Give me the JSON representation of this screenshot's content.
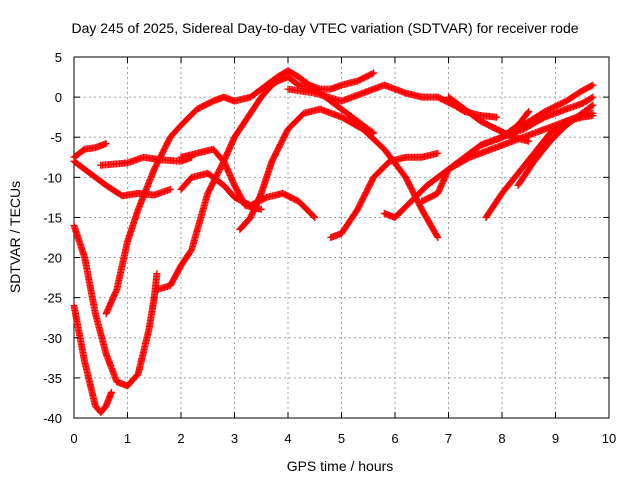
{
  "chart_data": {
    "type": "scatter",
    "title": "Day 245 of 2025, Sidereal Day-to-day VTEC variation (SDTVAR) for receiver rode",
    "xlabel": "GPS time / hours",
    "ylabel": "SDTVAR / TECUs",
    "xlim": [
      0,
      10
    ],
    "ylim": [
      -40,
      5
    ],
    "xticks": [
      0,
      1,
      2,
      3,
      4,
      5,
      6,
      7,
      8,
      9,
      10
    ],
    "yticks": [
      5,
      0,
      -5,
      -10,
      -15,
      -20,
      -25,
      -30,
      -35,
      -40
    ],
    "grid": true,
    "marker": "plus",
    "color": "#ff0000",
    "series": [
      {
        "x": [
          0.0,
          0.2,
          0.4,
          0.6
        ],
        "y": [
          -7.5,
          -6.5,
          -6.3,
          -5.8
        ]
      },
      {
        "x": [
          0.0,
          0.3,
          0.6,
          0.9,
          1.2,
          1.5,
          1.8
        ],
        "y": [
          -8.0,
          -9.5,
          -11.0,
          -12.3,
          -12.0,
          -12.2,
          -11.5
        ]
      },
      {
        "x": [
          0.5,
          1.0,
          1.3,
          1.6,
          2.0,
          2.2
        ],
        "y": [
          -8.5,
          -8.2,
          -7.5,
          -7.8,
          -8.0,
          -7.5
        ]
      },
      {
        "x": [
          0.0,
          0.2,
          0.4,
          0.5,
          0.6,
          0.7
        ],
        "y": [
          -26.0,
          -33.0,
          -38.5,
          -39.3,
          -38.5,
          -36.8
        ]
      },
      {
        "x": [
          0.0,
          0.2,
          0.4,
          0.6,
          0.8,
          1.0,
          1.2,
          1.4,
          1.5,
          1.55
        ],
        "y": [
          -16.0,
          -20.0,
          -27.0,
          -32.0,
          -35.5,
          -36.0,
          -34.5,
          -29.0,
          -25.0,
          -22.0
        ]
      },
      {
        "x": [
          0.6,
          0.8,
          1.0,
          1.2,
          1.5,
          1.8,
          2.0,
          2.3,
          2.6,
          2.8,
          3.0,
          3.3,
          3.6,
          3.8,
          4.0,
          4.2,
          4.4,
          4.6,
          4.8,
          5.0,
          5.3,
          5.6
        ],
        "y": [
          -27.0,
          -24.0,
          -18.0,
          -14.0,
          -9.0,
          -5.0,
          -3.5,
          -1.5,
          -0.5,
          0.0,
          -0.5,
          0.0,
          1.5,
          2.5,
          3.3,
          2.5,
          1.5,
          1.0,
          1.0,
          1.5,
          2.0,
          3.0
        ]
      },
      {
        "x": [
          1.55,
          1.8,
          2.0,
          2.2,
          2.5,
          2.8,
          3.0,
          3.3,
          3.5,
          3.7,
          3.8,
          4.0,
          4.2,
          4.5,
          4.8,
          5.0,
          5.3,
          5.6
        ],
        "y": [
          -24.0,
          -23.5,
          -21.0,
          -19.0,
          -12.0,
          -8.0,
          -5.0,
          -2.0,
          0.0,
          1.5,
          2.0,
          2.5,
          1.5,
          1.0,
          -0.5,
          -1.5,
          -3.0,
          -4.5
        ]
      },
      {
        "x": [
          2.0,
          2.2,
          2.5,
          2.8,
          3.0,
          3.3,
          3.6,
          3.9,
          4.2,
          4.5
        ],
        "y": [
          -11.5,
          -10.0,
          -9.5,
          -11.0,
          -12.5,
          -13.5,
          -12.5,
          -12.0,
          -13.0,
          -15.0
        ]
      },
      {
        "x": [
          2.0,
          2.3,
          2.6,
          2.8,
          3.0,
          3.2,
          3.5
        ],
        "y": [
          -7.5,
          -7.0,
          -6.5,
          -8.0,
          -11.0,
          -13.5,
          -14.0
        ]
      },
      {
        "x": [
          3.1,
          3.3,
          3.5,
          3.7,
          4.0,
          4.3,
          4.6,
          5.0,
          5.4,
          5.8,
          6.2,
          6.5,
          6.8
        ],
        "y": [
          -16.5,
          -15.0,
          -12.0,
          -8.0,
          -4.0,
          -2.0,
          -1.5,
          -2.5,
          -4.0,
          -6.5,
          -10.0,
          -14.0,
          -17.5
        ]
      },
      {
        "x": [
          4.8,
          5.0,
          5.3,
          5.6,
          5.9,
          6.2,
          6.5,
          6.8
        ],
        "y": [
          -17.5,
          -17.0,
          -14.0,
          -10.0,
          -8.0,
          -7.5,
          -7.5,
          -7.0
        ]
      },
      {
        "x": [
          4.0,
          4.5,
          5.0,
          5.4,
          5.8,
          6.2,
          6.5,
          6.8,
          7.1,
          7.3,
          7.6,
          7.9
        ],
        "y": [
          1.0,
          0.5,
          -0.5,
          0.5,
          1.5,
          0.5,
          0.0,
          0.0,
          -1.0,
          -1.8,
          -2.3,
          -2.5
        ]
      },
      {
        "x": [
          5.8,
          6.0,
          6.3,
          6.6,
          7.0,
          7.4,
          7.8,
          8.2,
          8.6,
          9.0,
          9.4,
          9.7
        ],
        "y": [
          -14.5,
          -15.0,
          -13.0,
          -11.0,
          -9.0,
          -7.5,
          -6.5,
          -5.5,
          -4.5,
          -3.5,
          -2.5,
          -2.0
        ]
      },
      {
        "x": [
          6.5,
          6.8,
          7.0,
          7.3,
          7.6,
          8.0,
          8.3,
          8.5
        ],
        "y": [
          -13.0,
          -12.0,
          -9.0,
          -7.5,
          -6.0,
          -5.0,
          -3.5,
          -1.8
        ]
      },
      {
        "x": [
          7.0,
          7.3,
          7.6,
          7.9,
          8.2,
          8.5
        ],
        "y": [
          0.0,
          -1.5,
          -3.0,
          -4.0,
          -5.0,
          -5.5
        ]
      },
      {
        "x": [
          7.7,
          8.0,
          8.3,
          8.6,
          8.9,
          9.2,
          9.5,
          9.7
        ],
        "y": [
          -15.0,
          -12.0,
          -9.5,
          -7.0,
          -4.5,
          -3.0,
          -2.5,
          -2.3
        ]
      },
      {
        "x": [
          8.3,
          8.6,
          8.9,
          9.2,
          9.5,
          9.7
        ],
        "y": [
          -11.0,
          -8.0,
          -5.5,
          -3.5,
          -2.0,
          -1.0
        ]
      },
      {
        "x": [
          8.0,
          8.4,
          8.8,
          9.2,
          9.5,
          9.7
        ],
        "y": [
          -5.0,
          -4.0,
          -2.5,
          -1.5,
          -0.8,
          0.0
        ]
      },
      {
        "x": [
          7.6,
          8.0,
          8.4,
          8.8,
          9.2,
          9.5,
          9.7
        ],
        "y": [
          -6.0,
          -5.0,
          -3.5,
          -1.8,
          -0.5,
          0.8,
          1.5
        ]
      }
    ]
  }
}
